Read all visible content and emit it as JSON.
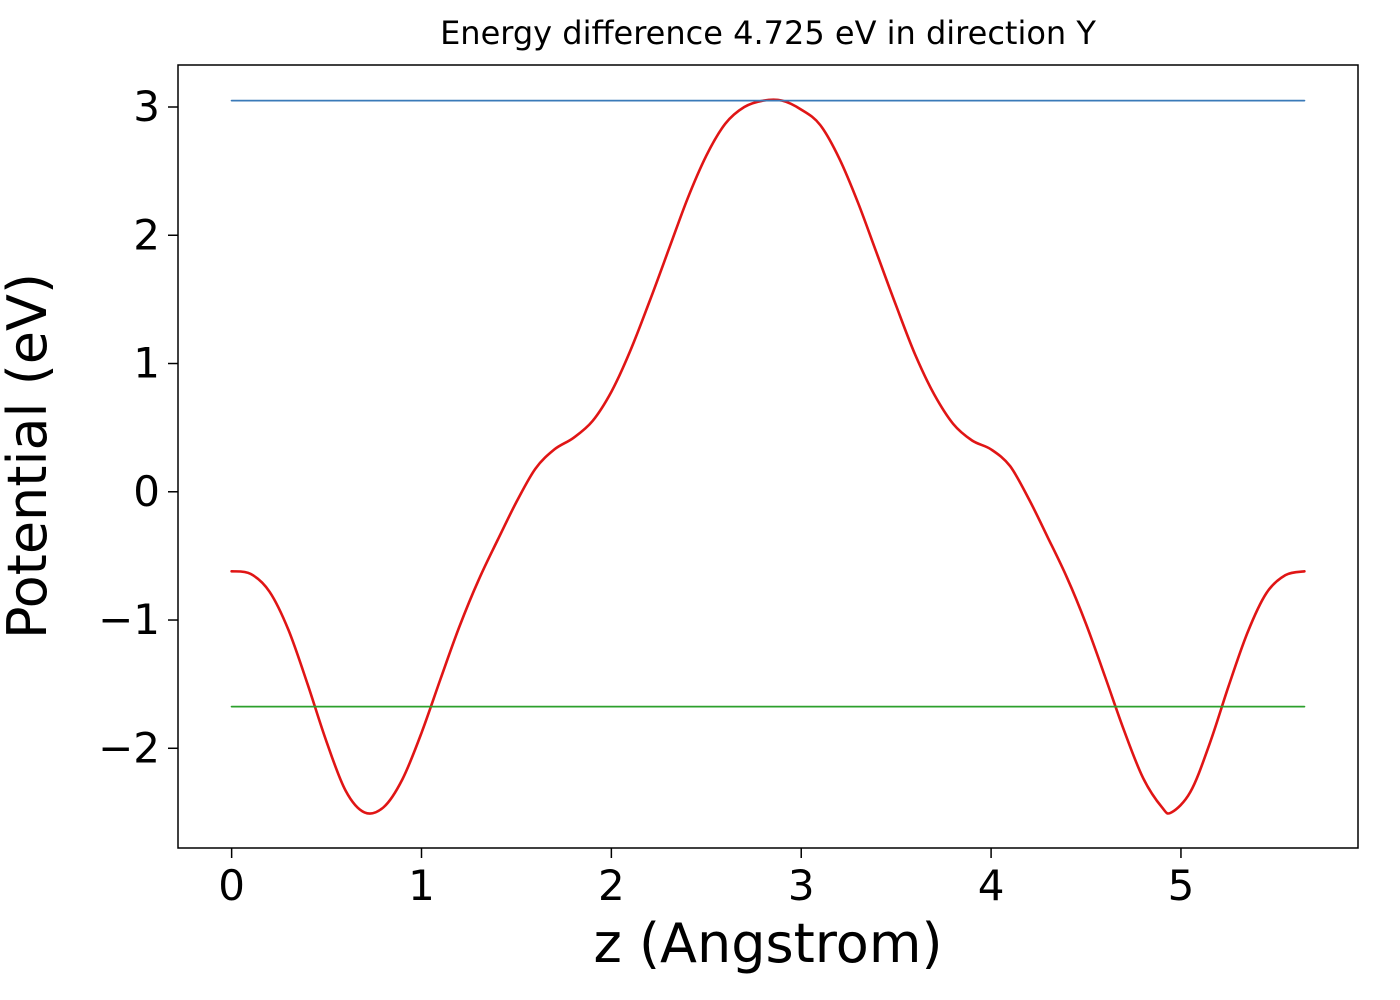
{
  "chart_data": {
    "type": "line",
    "title": "Energy difference 4.725 eV in direction Y",
    "xlabel": "z (Angstrom)",
    "ylabel": "Potential (eV)",
    "xlim": [
      -0.2825,
      5.9325
    ],
    "ylim": [
      -2.7775,
      3.3275
    ],
    "grid": false,
    "legend": "none",
    "x_ticks": [
      {
        "label": "0",
        "value": 0
      },
      {
        "label": "1",
        "value": 1
      },
      {
        "label": "2",
        "value": 2
      },
      {
        "label": "3",
        "value": 3
      },
      {
        "label": "4",
        "value": 4
      },
      {
        "label": "5",
        "value": 5
      }
    ],
    "y_ticks": [
      {
        "label": "3",
        "value": 3
      },
      {
        "label": "2",
        "value": 2
      },
      {
        "label": "1",
        "value": 1
      },
      {
        "label": "0",
        "value": 0
      },
      {
        "label": "−1",
        "value": -1
      },
      {
        "label": "−2",
        "value": -2
      }
    ],
    "series": [
      {
        "name": "potential-curve",
        "color": "#e01515",
        "width": 2.6,
        "smooth": true,
        "x": [
          0,
          0.1,
          0.2,
          0.3,
          0.4,
          0.5,
          0.6,
          0.7,
          0.8,
          0.9,
          1.0,
          1.1,
          1.2,
          1.3,
          1.4,
          1.5,
          1.6,
          1.7,
          1.8,
          1.9,
          2.0,
          2.1,
          2.2,
          2.3,
          2.4,
          2.5,
          2.6,
          2.7,
          2.8,
          2.9,
          3.0,
          3.1,
          3.2,
          3.3,
          3.4,
          3.5,
          3.6,
          3.7,
          3.8,
          3.9,
          4.0,
          4.1,
          4.2,
          4.3,
          4.4,
          4.5,
          4.6,
          4.7,
          4.8,
          4.9,
          4.95,
          5.05,
          5.15,
          5.25,
          5.35,
          5.45,
          5.55,
          5.65
        ],
        "y": [
          -0.62,
          -0.64,
          -0.78,
          -1.08,
          -1.5,
          -1.95,
          -2.33,
          -2.5,
          -2.46,
          -2.24,
          -1.88,
          -1.46,
          -1.05,
          -0.69,
          -0.38,
          -0.08,
          0.18,
          0.33,
          0.42,
          0.55,
          0.78,
          1.1,
          1.48,
          1.88,
          2.28,
          2.62,
          2.87,
          3.0,
          3.05,
          3.05,
          2.98,
          2.86,
          2.6,
          2.25,
          1.85,
          1.45,
          1.07,
          0.76,
          0.53,
          0.4,
          0.33,
          0.2,
          -0.06,
          -0.36,
          -0.67,
          -1.03,
          -1.44,
          -1.86,
          -2.23,
          -2.46,
          -2.5,
          -2.34,
          -1.97,
          -1.52,
          -1.1,
          -0.79,
          -0.65,
          -0.62
        ]
      },
      {
        "name": "upper-reference-line",
        "color": "#3a7ab8",
        "width": 1.8,
        "smooth": false,
        "x": [
          0,
          5.65
        ],
        "y": [
          3.05,
          3.05
        ]
      },
      {
        "name": "lower-reference-line",
        "color": "#2ca02c",
        "width": 1.8,
        "smooth": false,
        "x": [
          0,
          5.65
        ],
        "y": [
          -1.675,
          -1.675
        ]
      }
    ],
    "annotations": {
      "energy_difference_eV": 4.725,
      "direction": "Y"
    }
  }
}
